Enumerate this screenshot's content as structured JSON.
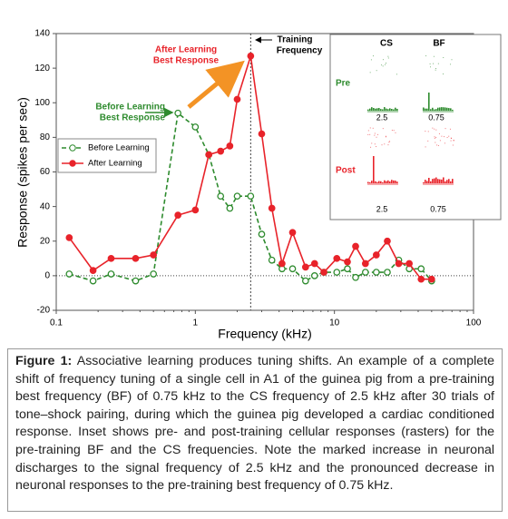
{
  "chart_data": {
    "type": "line",
    "ylabel": "Response (spikes per sec)",
    "xlabel": "Frequency (kHz)",
    "xscale": "log",
    "xlim": [
      0.1,
      100
    ],
    "xticks": [
      0.1,
      1,
      10,
      100
    ],
    "ylim": [
      -20,
      140
    ],
    "yticks": [
      -20,
      0,
      20,
      40,
      60,
      80,
      100,
      120,
      140
    ],
    "x": [
      0.124,
      0.184,
      0.248,
      0.372,
      0.5,
      0.75,
      1.0,
      1.25,
      1.52,
      1.77,
      2.0,
      2.5,
      3.0,
      3.55,
      4.2,
      5.0,
      6.2,
      7.2,
      8.4,
      10.4,
      12.4,
      14.2,
      16.7,
      20,
      24,
      29,
      34.5,
      42,
      50
    ],
    "series": [
      {
        "name": "Before Learning",
        "color": "#2e8b2e",
        "dashed": true,
        "filled": false,
        "values": [
          1,
          -3,
          1,
          -3,
          1,
          94,
          86,
          70,
          46,
          39,
          46,
          46,
          24,
          9,
          4,
          4,
          -3,
          0,
          2,
          2,
          4,
          -1,
          2,
          2,
          2,
          9,
          4,
          4,
          -3
        ]
      },
      {
        "name": "After Learning",
        "color": "#e8232a",
        "dashed": false,
        "filled": true,
        "values": [
          22,
          3,
          10,
          10,
          12,
          35,
          38,
          70,
          72,
          75,
          102,
          127,
          82,
          39,
          7,
          25,
          5,
          7,
          2,
          10,
          8,
          17,
          7,
          12,
          20,
          7,
          7,
          -2,
          -2
        ]
      }
    ],
    "hline": 0,
    "vline": 2.5,
    "legend": "left",
    "annotations": {
      "before": [
        "Before Learning",
        "Best Response"
      ],
      "after": [
        "After Learning",
        "Best Response"
      ],
      "training": [
        "Training",
        "Frequency"
      ]
    },
    "inset": {
      "columns": [
        "CS",
        "BF"
      ],
      "rows": [
        "Pre",
        "Post"
      ],
      "labels": [
        "2.5",
        "0.75",
        "2.5",
        "0.75"
      ]
    }
  },
  "caption": {
    "label": "Figure 1:",
    "text": "Associative learning produces tuning shifts. An example of a complete shift of frequency tuning of a single cell in A1 of the guinea pig from a pre-training best frequency (BF) of 0.75 kHz to the CS frequency of 2.5 kHz after 30 trials of tone–shock pairing, during which the guinea pig developed a cardiac conditioned response. Inset shows pre- and post-training cellular responses (rasters) for the pre-training BF and the CS frequencies. Note the marked increase in neuronal discharges to the signal frequency of 2.5 kHz and the pronounced decrease in neuronal responses to the pre-training best frequency of 0.75 kHz."
  }
}
